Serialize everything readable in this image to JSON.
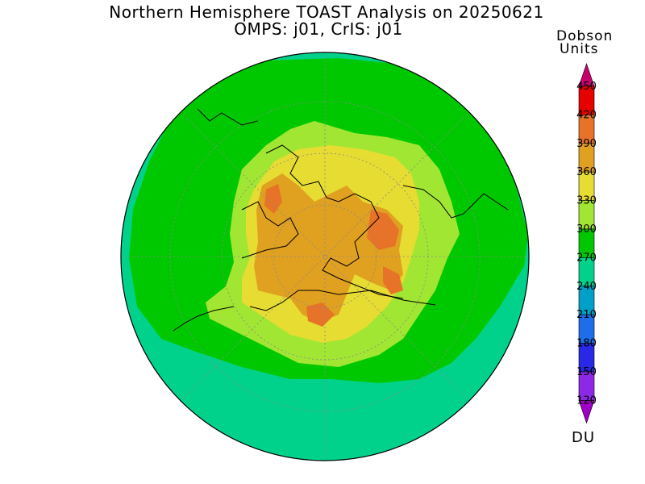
{
  "figure": {
    "title_line1": "Northern Hemisphere TOAST Analysis on 20250621",
    "title_line2": "OMPS: j01, CrIS: j01"
  },
  "colorbar": {
    "title_line1": "Dobson",
    "title_line2": "Units",
    "unit_label": "DU",
    "levels": [
      {
        "label": "450",
        "color": "#c8006e"
      },
      {
        "label": "420",
        "color": "#e60000"
      },
      {
        "label": "390",
        "color": "#e67328"
      },
      {
        "label": "360",
        "color": "#e0a020"
      },
      {
        "label": "330",
        "color": "#e6dc32"
      },
      {
        "label": "300",
        "color": "#a0e632"
      },
      {
        "label": "270",
        "color": "#00c800"
      },
      {
        "label": "240",
        "color": "#00d28c"
      },
      {
        "label": "210",
        "color": "#00a0c8"
      },
      {
        "label": "180",
        "color": "#1e6eeb"
      },
      {
        "label": "150",
        "color": "#2828e6"
      },
      {
        "label": "120",
        "color": "#8c28e6"
      }
    ],
    "bottom_color": "#a000c8"
  },
  "map": {
    "projection": "north polar stereographic",
    "background_color": "#00d28c",
    "gridline_color": "#8a8a8a"
  }
}
